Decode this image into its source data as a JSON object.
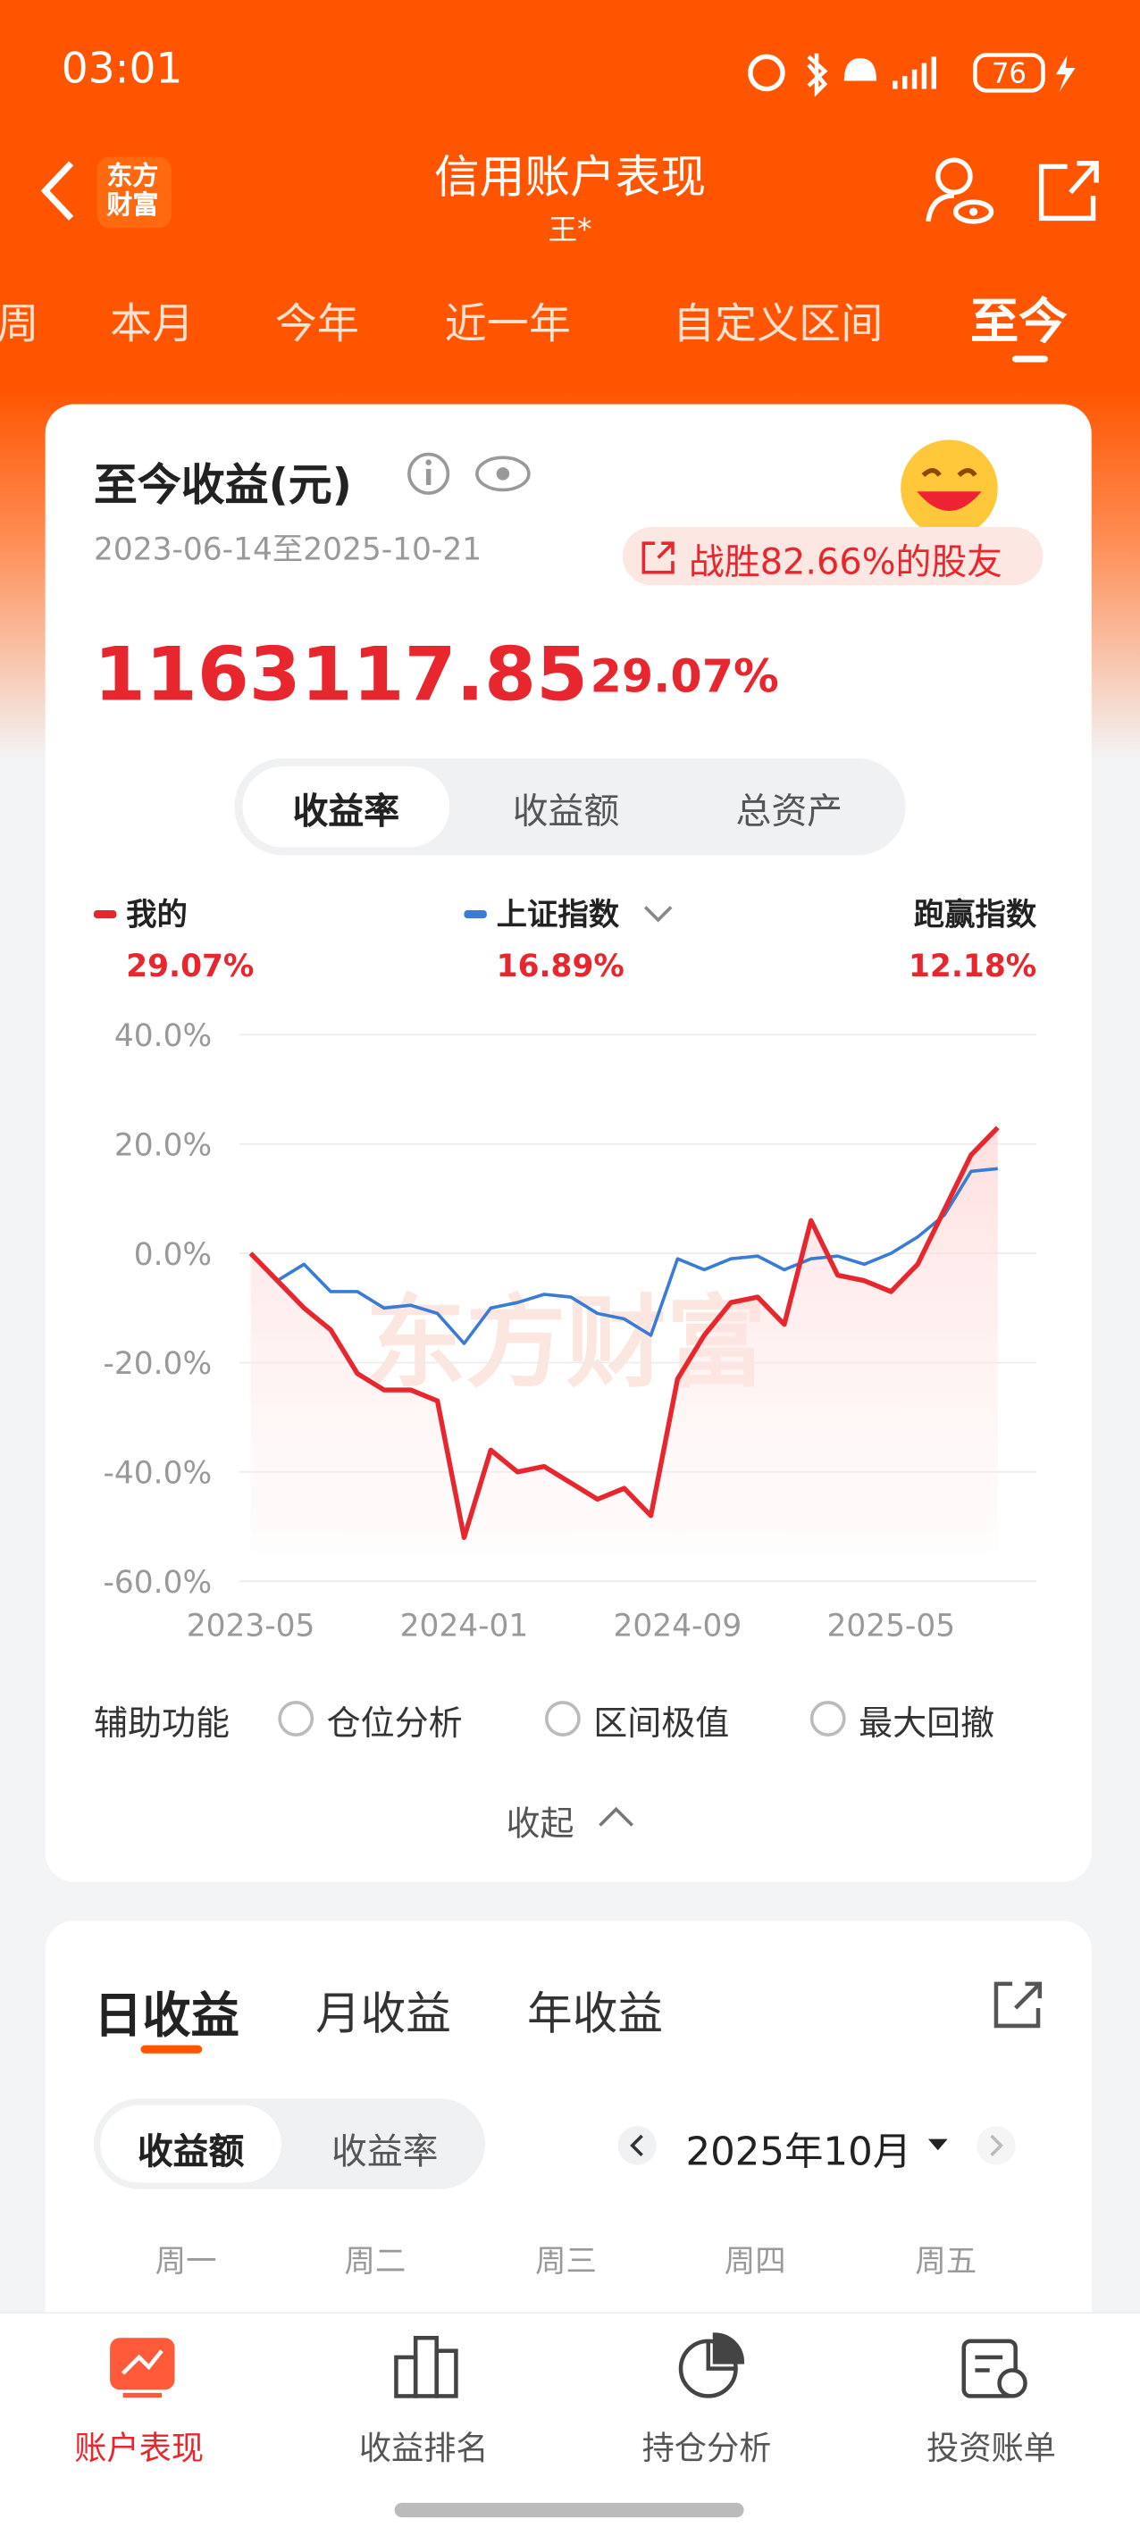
{
  "status": {
    "time": "03:01",
    "battery": "76"
  },
  "header": {
    "title": "信用账户表现",
    "subtitle": "王*",
    "logo": [
      "东方",
      "财富"
    ]
  },
  "tabs": [
    "周",
    "本月",
    "今年",
    "近一年",
    "自定义区间",
    "至今"
  ],
  "card": {
    "title": "至今收益(元)",
    "date_range": "2023-06-14至2025-10-21",
    "badge": "战胜82.66%的股友",
    "amount": "1163117.85",
    "rate": "29.07%",
    "toggle": [
      "收益率",
      "收益额",
      "总资产"
    ]
  },
  "chart_data": {
    "type": "line",
    "x": [
      "2023-05",
      "2023-06",
      "2023-07",
      "2023-08",
      "2023-09",
      "2023-10",
      "2023-11",
      "2023-12",
      "2024-01",
      "2024-02",
      "2024-03",
      "2024-04",
      "2024-05",
      "2024-06",
      "2024-07",
      "2024-08",
      "2024-09",
      "2024-10",
      "2024-11",
      "2024-12",
      "2025-01",
      "2025-02",
      "2025-03",
      "2025-04",
      "2025-05",
      "2025-06",
      "2025-07",
      "2025-08",
      "2025-09"
    ],
    "xticks": [
      "2023-05",
      "2024-01",
      "2024-09",
      "2025-05"
    ],
    "ylim": [
      -60,
      40
    ],
    "yticks": [
      {
        "value": 40,
        "label": "40.0%"
      },
      {
        "value": 20,
        "label": "20.0%"
      },
      {
        "value": 0,
        "label": "0.0%"
      },
      {
        "value": -20,
        "label": "-20.0%"
      },
      {
        "value": -40,
        "label": "-40.0%"
      },
      {
        "value": -60,
        "label": "-60.0%"
      }
    ],
    "grid": true,
    "watermark": "东方财富",
    "series": [
      {
        "name": "我的",
        "color": "#e8262d",
        "total": "29.07%",
        "values": [
          0,
          -5,
          -10,
          -14,
          -22,
          -25,
          -25,
          -27,
          -52,
          -36,
          -40,
          -39,
          -42,
          -45,
          -43,
          -48,
          -23,
          -15,
          -9,
          -8,
          -13,
          6,
          -4,
          -5,
          -7,
          -2,
          8,
          18,
          23
        ]
      },
      {
        "name": "上证指数",
        "color": "#3a7bd5",
        "total": "16.89%",
        "values": [
          0,
          -5,
          -2,
          -7,
          -7,
          -10,
          -9.5,
          -11,
          -16.5,
          -10,
          -9,
          -7.5,
          -8,
          -11,
          -12,
          -15,
          -1,
          -3,
          -1,
          -0.5,
          -3,
          -1,
          -0.5,
          -2,
          0,
          3,
          7,
          15,
          15.5
        ]
      }
    ],
    "excess": {
      "label": "跑赢指数",
      "value": "12.18%"
    }
  },
  "aux": {
    "label": "辅助功能",
    "options": [
      "仓位分析",
      "区间极值",
      "最大回撤"
    ],
    "collapse": "收起"
  },
  "earnings": {
    "tabs": [
      "日收益",
      "月收益",
      "年收益"
    ],
    "toggle": [
      "收益额",
      "收益率"
    ],
    "month": "2025年10月",
    "weekdays": [
      "周一",
      "周二",
      "周三",
      "周四",
      "周五"
    ]
  },
  "nav": [
    "账户表现",
    "收益排名",
    "持仓分析",
    "投资账单"
  ]
}
